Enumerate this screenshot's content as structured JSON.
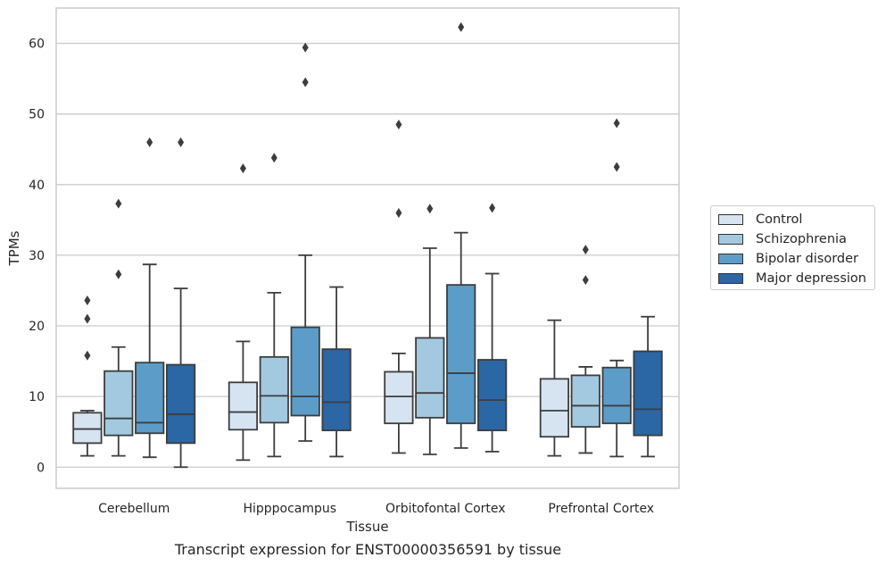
{
  "chart_data": {
    "type": "box",
    "title": "",
    "xlabel": "Tissue",
    "ylabel": "TPMs",
    "ylim": [
      -3,
      65
    ],
    "yticks": [
      0,
      10,
      20,
      30,
      40,
      50,
      60
    ],
    "grid": "horizontal",
    "legend_position": "right",
    "categories": [
      "Cerebellum",
      "Hipppocampus",
      "Orbitofontal Cortex",
      "Prefrontal Cortex"
    ],
    "series": [
      {
        "name": "Control",
        "color": "#d6e4f2",
        "boxes": [
          {
            "whisker_low": 1.6,
            "q1": 3.4,
            "median": 5.4,
            "q3": 7.7,
            "whisker_high": 8.0,
            "outliers": [
              15.8,
              21.0,
              23.6
            ]
          },
          {
            "whisker_low": 1.0,
            "q1": 5.3,
            "median": 7.8,
            "q3": 12.0,
            "whisker_high": 17.8,
            "outliers": [
              42.3
            ]
          },
          {
            "whisker_low": 2.0,
            "q1": 6.2,
            "median": 10.0,
            "q3": 13.5,
            "whisker_high": 16.1,
            "outliers": [
              36.0,
              48.5
            ]
          },
          {
            "whisker_low": 1.6,
            "q1": 4.3,
            "median": 8.0,
            "q3": 12.5,
            "whisker_high": 20.8,
            "outliers": []
          }
        ]
      },
      {
        "name": "Schizophrenia",
        "color": "#a3c9e0",
        "boxes": [
          {
            "whisker_low": 1.6,
            "q1": 4.5,
            "median": 6.9,
            "q3": 13.6,
            "whisker_high": 17.0,
            "outliers": [
              27.3,
              37.3
            ]
          },
          {
            "whisker_low": 1.5,
            "q1": 6.3,
            "median": 10.1,
            "q3": 15.6,
            "whisker_high": 24.7,
            "outliers": [
              43.8
            ]
          },
          {
            "whisker_low": 1.8,
            "q1": 7.0,
            "median": 10.5,
            "q3": 18.3,
            "whisker_high": 31.0,
            "outliers": [
              36.6
            ]
          },
          {
            "whisker_low": 2.0,
            "q1": 5.7,
            "median": 8.7,
            "q3": 13.0,
            "whisker_high": 14.2,
            "outliers": [
              26.5,
              30.8
            ]
          }
        ]
      },
      {
        "name": "Bipolar disorder",
        "color": "#5c9cc9",
        "boxes": [
          {
            "whisker_low": 1.4,
            "q1": 4.8,
            "median": 6.3,
            "q3": 14.8,
            "whisker_high": 28.7,
            "outliers": [
              46.0
            ]
          },
          {
            "whisker_low": 3.7,
            "q1": 7.3,
            "median": 10.0,
            "q3": 19.8,
            "whisker_high": 30.0,
            "outliers": [
              54.5,
              59.4
            ]
          },
          {
            "whisker_low": 2.7,
            "q1": 6.2,
            "median": 13.3,
            "q3": 25.8,
            "whisker_high": 33.2,
            "outliers": [
              62.3
            ]
          },
          {
            "whisker_low": 1.5,
            "q1": 6.2,
            "median": 8.7,
            "q3": 14.1,
            "whisker_high": 15.1,
            "outliers": [
              42.5,
              48.7
            ]
          }
        ]
      },
      {
        "name": "Major depression",
        "color": "#2b66a5",
        "boxes": [
          {
            "whisker_low": 0.0,
            "q1": 3.4,
            "median": 7.5,
            "q3": 14.5,
            "whisker_high": 25.3,
            "outliers": [
              46.0
            ]
          },
          {
            "whisker_low": 1.5,
            "q1": 5.2,
            "median": 9.2,
            "q3": 16.7,
            "whisker_high": 25.5,
            "outliers": []
          },
          {
            "whisker_low": 2.2,
            "q1": 5.2,
            "median": 9.5,
            "q3": 15.2,
            "whisker_high": 27.4,
            "outliers": [
              36.7
            ]
          },
          {
            "whisker_low": 1.5,
            "q1": 4.5,
            "median": 8.2,
            "q3": 16.4,
            "whisker_high": 21.3,
            "outliers": []
          }
        ]
      }
    ],
    "caption": "Transcript expression for ENST00000356591 by tissue"
  }
}
